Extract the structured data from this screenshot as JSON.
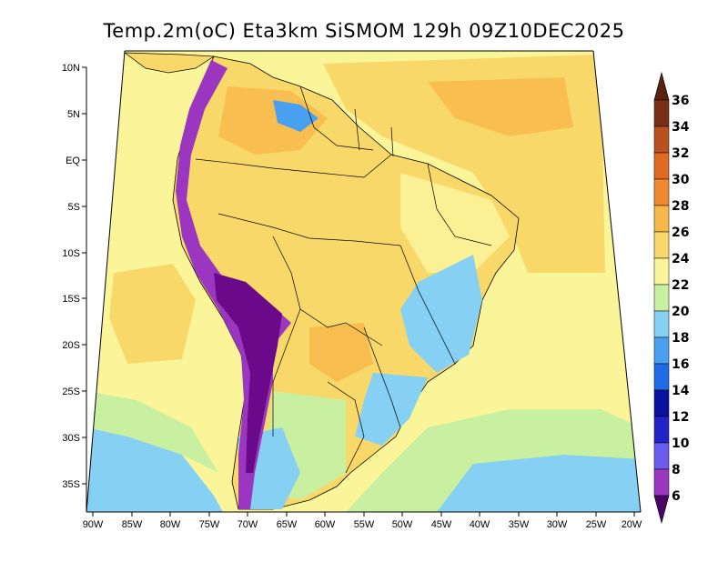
{
  "title": "Temp.2m(oC) Eta3km SiSMOM 129h 09Z10DEC2025",
  "axes": {
    "lat_labels": [
      "10N",
      "5N",
      "EQ",
      "5S",
      "10S",
      "15S",
      "20S",
      "25S",
      "30S",
      "35S"
    ],
    "lon_labels": [
      "90W",
      "85W",
      "80W",
      "75W",
      "70W",
      "65W",
      "60W",
      "55W",
      "50W",
      "45W",
      "40W",
      "35W",
      "30W",
      "25W",
      "20W"
    ]
  },
  "colorbar": {
    "labels": [
      "6",
      "8",
      "10",
      "12",
      "14",
      "16",
      "18",
      "20",
      "22",
      "24",
      "26",
      "28",
      "30",
      "32",
      "34",
      "36"
    ],
    "colors": [
      "#6a0a8a",
      "#9a36c0",
      "#6a5cf0",
      "#2222c8",
      "#0a10a0",
      "#1f6ae6",
      "#4aa0f0",
      "#86d0f4",
      "#c8f0a0",
      "#fbf59a",
      "#f9d86a",
      "#f7b84a",
      "#f08a30",
      "#e06a22",
      "#b85020",
      "#7a3014"
    ],
    "min_arrow_color": "#4a0464",
    "max_arrow_color": "#5a2010"
  },
  "colors": {
    "land_border": "#000000",
    "frame": "#000000"
  }
}
